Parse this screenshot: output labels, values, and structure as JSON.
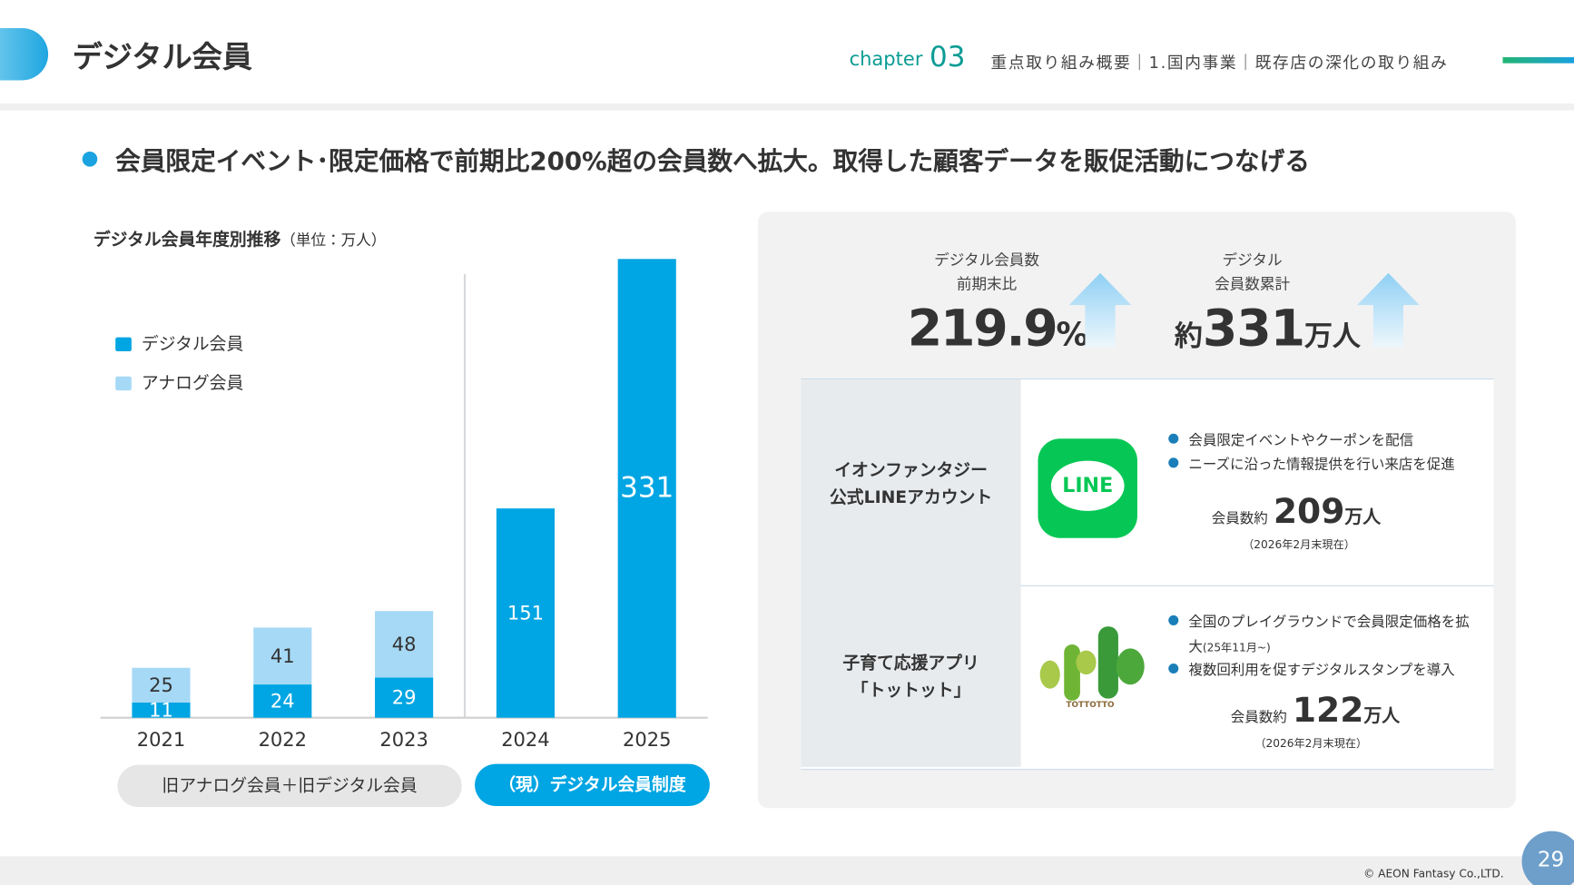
{
  "header": {
    "title": "デジタル会員",
    "chapter_word": "chapter",
    "chapter_number": "03",
    "breadcrumb": "重点取り組み概要｜1.国内事業｜既存店の深化の取り組み"
  },
  "headline": "会員限定イベント･限定価格で前期比200%超の会員数へ拡大。取得した顧客データを販促活動につなげる",
  "chart_data": {
    "type": "stacked-bar",
    "title": "デジタル会員年度別推移",
    "subtitle": "（単位：万人）",
    "categories": [
      "2021",
      "2022",
      "2023",
      "2024",
      "2025"
    ],
    "series": [
      {
        "name": "デジタル会員",
        "color": "#00a5e3",
        "values": [
          11,
          24,
          29,
          151,
          331
        ]
      },
      {
        "name": "アナログ会員",
        "color": "#a6d9f5",
        "values": [
          25,
          41,
          48,
          null,
          null
        ]
      }
    ],
    "ylim": [
      0,
      331
    ],
    "annotations": [
      "旧アナログ会員＋旧デジタル会員",
      "（現）デジタル会員制度"
    ]
  },
  "stats": [
    {
      "label": [
        "デジタル会員数",
        "前期末比"
      ],
      "value": "219.9",
      "unit": "%"
    },
    {
      "label": [
        "デジタル",
        "会員数累計"
      ],
      "prefix": "約",
      "value": "331",
      "unit": "万人"
    }
  ],
  "rows": [
    {
      "name": [
        "イオンファンタジー",
        "公式LINEアカウント"
      ],
      "logo": "LINE",
      "bullets": [
        {
          "text": "会員限定イベントやクーポンを配信"
        },
        {
          "text": "ニーズに沿った情報提供を行い来店を促進"
        }
      ],
      "count_label": "会員数約",
      "count": "209",
      "count_unit": "万人",
      "note": "（2026年2月末現在）"
    },
    {
      "name": [
        "子育て応援アプリ",
        "「トットット」"
      ],
      "logo": "TOTTOTTO",
      "bullets": [
        {
          "text": "全国のプレイグラウンドで会員限定価格を拡大",
          "note": "(25年11月~)"
        },
        {
          "text": "複数回利用を促すデジタルスタンプを導入"
        }
      ],
      "count_label": "会員数約",
      "count": "122",
      "count_unit": "万人",
      "note": "（2026年2月末現在）"
    }
  ],
  "footer": {
    "copyright": "© AEON Fantasy Co.,LTD.",
    "page": "29"
  }
}
